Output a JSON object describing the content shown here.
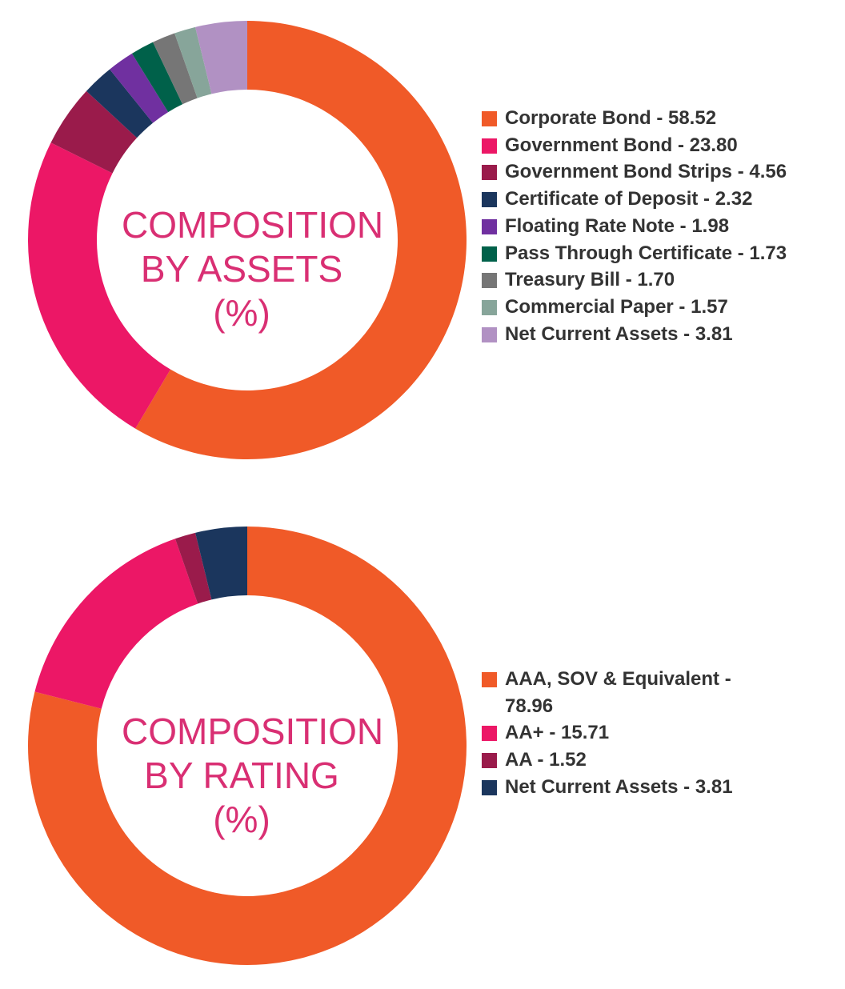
{
  "chart_data": [
    {
      "type": "pie",
      "title": "COMPOSITION BY ASSETS (%)",
      "title_lines": [
        "COMPOSITION",
        "BY ASSETS",
        "(%)"
      ],
      "legend_position": "right",
      "categories": [
        "Corporate Bond",
        "Government Bond",
        "Government Bond Strips",
        "Certificate of Deposit",
        "Floating Rate Note",
        "Pass Through Certificate",
        "Treasury Bill",
        "Commercial Paper",
        "Net Current Assets"
      ],
      "values": [
        58.52,
        23.8,
        4.56,
        2.32,
        1.98,
        1.73,
        1.7,
        1.57,
        3.81
      ],
      "legend_labels": [
        "Corporate Bond - 58.52",
        "Government Bond - 23.80",
        "Government Bond Strips - 4.56",
        "Certificate of Deposit - 2.32",
        "Floating Rate Note - 1.98",
        "Pass Through Certificate - 1.73",
        "Treasury Bill - 1.70",
        "Commercial Paper - 1.57",
        "Net Current Assets - 3.81"
      ],
      "colors": [
        "#f05a28",
        "#ec1766",
        "#9a1b4b",
        "#1b365d",
        "#7030a0",
        "#00614a",
        "#767676",
        "#87a59a",
        "#b191c3"
      ]
    },
    {
      "type": "pie",
      "title": "COMPOSITION BY RATING (%)",
      "title_lines": [
        "COMPOSITION",
        "BY RATING",
        "(%)"
      ],
      "legend_position": "right",
      "categories": [
        "AAA, SOV & Equivalent",
        "AA+",
        "AA",
        "Net Current Assets"
      ],
      "values": [
        78.96,
        15.71,
        1.52,
        3.81
      ],
      "legend_labels": [
        "AAA, SOV & Equivalent -\n78.96",
        "AA+ - 15.71",
        "AA - 1.52",
        "Net Current Assets - 3.81"
      ],
      "colors": [
        "#f05a28",
        "#ec1766",
        "#9a1b4b",
        "#1b365d"
      ]
    }
  ]
}
